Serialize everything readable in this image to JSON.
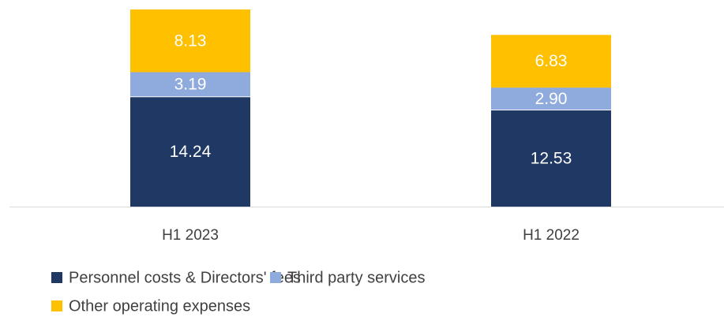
{
  "chart_data": {
    "type": "stacked-bar",
    "categories": [
      "H1 2023",
      "H1 2022"
    ],
    "series": [
      {
        "name": "Personnel costs & Directors' fees",
        "color": "#1f3864",
        "values": [
          14.24,
          12.53
        ]
      },
      {
        "name": "Third party services",
        "color": "#8faadc",
        "values": [
          3.19,
          2.9
        ],
        "value_labels": [
          "3.19",
          "2.90"
        ]
      },
      {
        "name": "Other operating expenses",
        "color": "#ffc000",
        "values": [
          8.13,
          6.83
        ]
      }
    ]
  }
}
